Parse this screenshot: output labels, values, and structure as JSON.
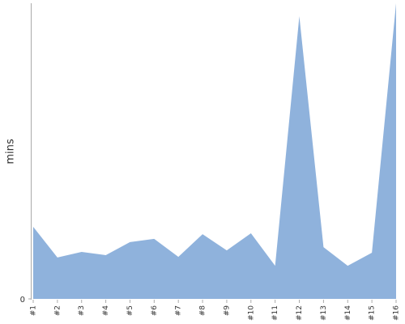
{
  "chart_data": {
    "type": "area",
    "ylabel": "mins",
    "categories": [
      "#1",
      "#2",
      "#3",
      "#4",
      "#5",
      "#6",
      "#7",
      "#8",
      "#9",
      "#10",
      "#11",
      "#12",
      "#13",
      "#14",
      "#15",
      "#16"
    ],
    "values": [
      24.4,
      14,
      15.9,
      14.8,
      19.2,
      20.3,
      14.2,
      21.9,
      16.4,
      22.2,
      11.2,
      95.6,
      17.5,
      11.2,
      15.6,
      100
    ],
    "color": "#8fb2dc",
    "ylim": [
      0,
      100
    ],
    "yticks": [
      0
    ]
  }
}
